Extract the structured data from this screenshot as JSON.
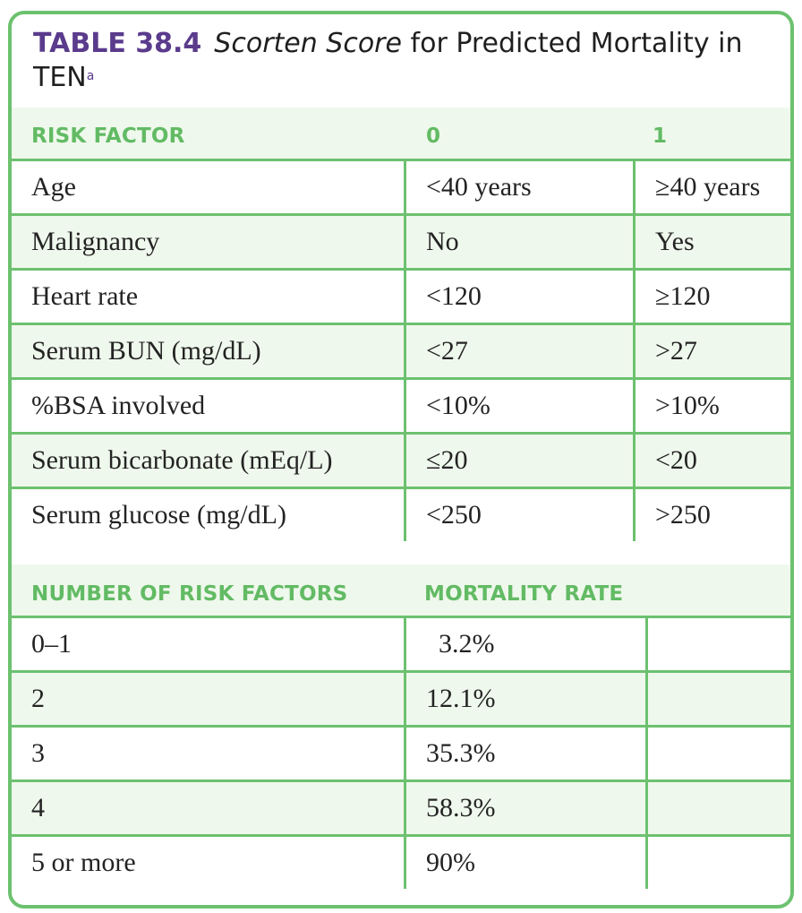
{
  "title": {
    "table_number": "TABLE 38.4",
    "italic_part": "Scorten Score",
    "rest": "for Predicted Mortality in TEN",
    "superscript": "a"
  },
  "risk_section": {
    "headers": [
      "RISK FACTOR",
      "0",
      "1"
    ],
    "rows": [
      [
        "Age",
        "<40 years",
        "≥40 years"
      ],
      [
        "Malignancy",
        "No",
        "Yes"
      ],
      [
        "Heart rate",
        "<120",
        "≥120"
      ],
      [
        "Serum BUN (mg/dL)",
        "<27",
        ">27"
      ],
      [
        "%BSA involved",
        "<10%",
        ">10%"
      ],
      [
        "Serum bicarbonate (mEq/L)",
        "≤20",
        "<20"
      ],
      [
        "Serum glucose (mg/dL)",
        "<250",
        ">250"
      ]
    ]
  },
  "mortality_section": {
    "headers": [
      "NUMBER OF RISK FACTORS",
      "MORTALITY RATE"
    ],
    "rows": [
      [
        "0–1",
        "3.2%",
        ""
      ],
      [
        "2",
        "12.1%",
        ""
      ],
      [
        "3",
        "35.3%",
        ""
      ],
      [
        "4",
        "58.3%",
        ""
      ],
      [
        "5 or more",
        "90%",
        ""
      ]
    ]
  },
  "colors": {
    "border": "#6cc16f",
    "header_text": "#62bb64",
    "band": "#eff8ec",
    "title_accent": "#5a3b8c"
  }
}
